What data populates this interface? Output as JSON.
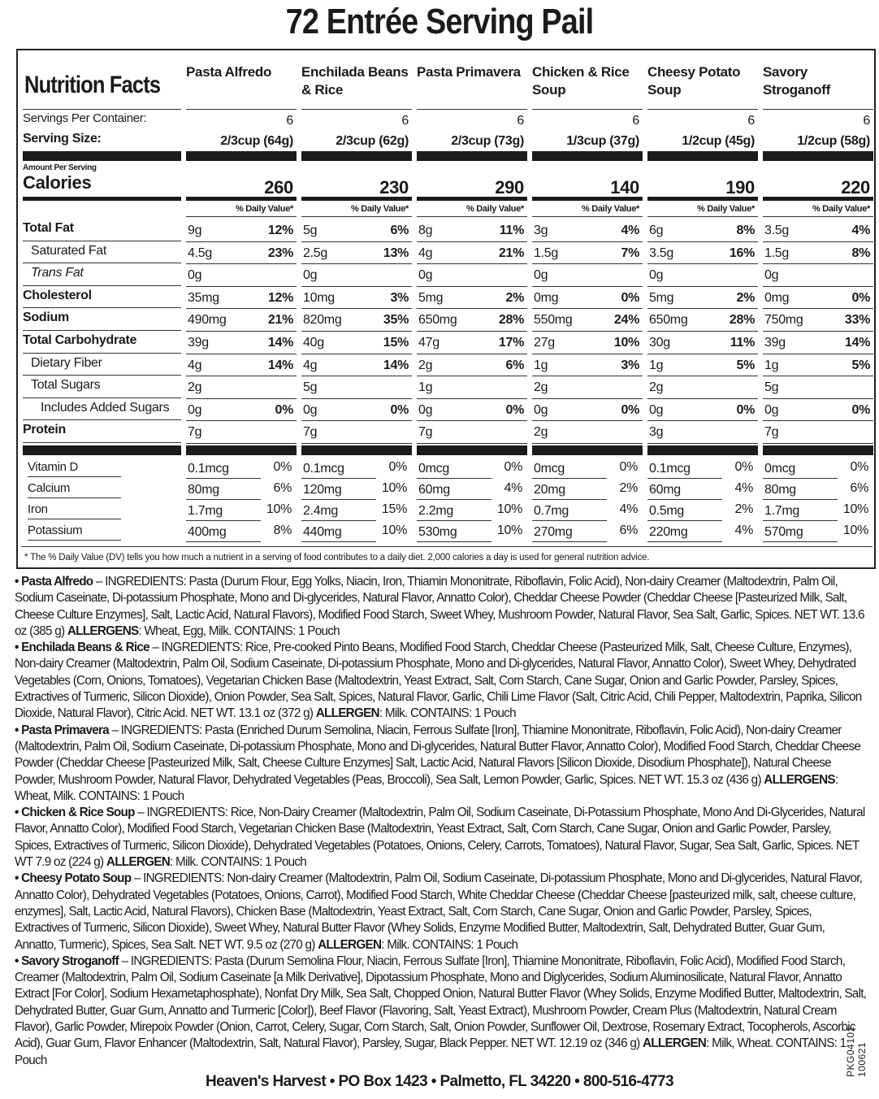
{
  "title": "72 Entrée Serving Pail",
  "panel_title": "Nutrition Facts",
  "products": [
    "Pasta Alfredo",
    "Enchilada Beans & Rice",
    "Pasta Primavera",
    "Chicken & Rice Soup",
    "Cheesy Potato Soup",
    "Savory Stroganoff"
  ],
  "servings_label": "Servings Per Container:",
  "servings": [
    "6",
    "6",
    "6",
    "6",
    "6",
    "6"
  ],
  "serving_size_label": "Serving Size:",
  "serving_sizes": [
    "2/3cup (64g)",
    "2/3cup (62g)",
    "2/3cup (73g)",
    "1/3cup (37g)",
    "1/2cup (45g)",
    "1/2cup (58g)"
  ],
  "amount_label": "Amount Per Serving",
  "calories_label": "Calories",
  "calories": [
    "260",
    "230",
    "290",
    "140",
    "190",
    "220"
  ],
  "dv_label": "% Daily Value*",
  "nutrients": [
    {
      "label": "Total Fat",
      "bold": true,
      "values": [
        [
          "9g",
          "12%"
        ],
        [
          "5g",
          "6%"
        ],
        [
          "8g",
          "11%"
        ],
        [
          "3g",
          "4%"
        ],
        [
          "6g",
          "8%"
        ],
        [
          "3.5g",
          "4%"
        ]
      ]
    },
    {
      "label": "Saturated Fat",
      "indent": 1,
      "values": [
        [
          "4.5g",
          "23%"
        ],
        [
          "2.5g",
          "13%"
        ],
        [
          "4g",
          "21%"
        ],
        [
          "1.5g",
          "7%"
        ],
        [
          "3.5g",
          "16%"
        ],
        [
          "1.5g",
          "8%"
        ]
      ]
    },
    {
      "label": "Trans Fat",
      "indent": 1,
      "italic": true,
      "values": [
        [
          "0g",
          ""
        ],
        [
          "0g",
          ""
        ],
        [
          "0g",
          ""
        ],
        [
          "0g",
          ""
        ],
        [
          "0g",
          ""
        ],
        [
          "0g",
          ""
        ]
      ]
    },
    {
      "label": "Cholesterol",
      "bold": true,
      "values": [
        [
          "35mg",
          "12%"
        ],
        [
          "10mg",
          "3%"
        ],
        [
          "5mg",
          "2%"
        ],
        [
          "0mg",
          "0%"
        ],
        [
          "5mg",
          "2%"
        ],
        [
          "0mg",
          "0%"
        ]
      ]
    },
    {
      "label": "Sodium",
      "bold": true,
      "values": [
        [
          "490mg",
          "21%"
        ],
        [
          "820mg",
          "35%"
        ],
        [
          "650mg",
          "28%"
        ],
        [
          "550mg",
          "24%"
        ],
        [
          "650mg",
          "28%"
        ],
        [
          "750mg",
          "33%"
        ]
      ]
    },
    {
      "label": "Total Carbohydrate",
      "bold": true,
      "values": [
        [
          "39g",
          "14%"
        ],
        [
          "40g",
          "15%"
        ],
        [
          "47g",
          "17%"
        ],
        [
          "27g",
          "10%"
        ],
        [
          "30g",
          "11%"
        ],
        [
          "39g",
          "14%"
        ]
      ]
    },
    {
      "label": "Dietary Fiber",
      "indent": 1,
      "values": [
        [
          "4g",
          "14%"
        ],
        [
          "4g",
          "14%"
        ],
        [
          "2g",
          "6%"
        ],
        [
          "1g",
          "3%"
        ],
        [
          "1g",
          "5%"
        ],
        [
          "1g",
          "5%"
        ]
      ]
    },
    {
      "label": "Total Sugars",
      "indent": 1,
      "values": [
        [
          "2g",
          ""
        ],
        [
          "5g",
          ""
        ],
        [
          "1g",
          ""
        ],
        [
          "2g",
          ""
        ],
        [
          "2g",
          ""
        ],
        [
          "5g",
          ""
        ]
      ]
    },
    {
      "label": "Includes Added Sugars",
      "indent": 2,
      "values": [
        [
          "0g",
          "0%"
        ],
        [
          "0g",
          "0%"
        ],
        [
          "0g",
          "0%"
        ],
        [
          "0g",
          "0%"
        ],
        [
          "0g",
          "0%"
        ],
        [
          "0g",
          "0%"
        ]
      ]
    },
    {
      "label": "Protein",
      "bold": true,
      "values": [
        [
          "7g",
          ""
        ],
        [
          "7g",
          ""
        ],
        [
          "7g",
          ""
        ],
        [
          "2g",
          ""
        ],
        [
          "3g",
          ""
        ],
        [
          "7g",
          ""
        ]
      ]
    }
  ],
  "vitamins": [
    {
      "label": "Vitamin D",
      "values": [
        [
          "0.1mcg",
          "0%"
        ],
        [
          "0.1mcg",
          "0%"
        ],
        [
          "0mcg",
          "0%"
        ],
        [
          "0mcg",
          "0%"
        ],
        [
          "0.1mcg",
          "0%"
        ],
        [
          "0mcg",
          "0%"
        ]
      ]
    },
    {
      "label": "Calcium",
      "values": [
        [
          "80mg",
          "6%"
        ],
        [
          "120mg",
          "10%"
        ],
        [
          "60mg",
          "4%"
        ],
        [
          "20mg",
          "2%"
        ],
        [
          "60mg",
          "4%"
        ],
        [
          "80mg",
          "6%"
        ]
      ]
    },
    {
      "label": "Iron",
      "values": [
        [
          "1.7mg",
          "10%"
        ],
        [
          "2.4mg",
          "15%"
        ],
        [
          "2.2mg",
          "10%"
        ],
        [
          "0.7mg",
          "4%"
        ],
        [
          "0.5mg",
          "2%"
        ],
        [
          "1.7mg",
          "10%"
        ]
      ]
    },
    {
      "label": "Potassium",
      "values": [
        [
          "400mg",
          "8%"
        ],
        [
          "440mg",
          "10%"
        ],
        [
          "530mg",
          "10%"
        ],
        [
          "270mg",
          "6%"
        ],
        [
          "220mg",
          "4%"
        ],
        [
          "570mg",
          "10%"
        ]
      ]
    }
  ],
  "footnote": "* The % Daily Value (DV) tells you how much a nutrient in a serving of food contributes to a daily diet. 2,000 calories a day is used for general nutrition advice.",
  "ingredients": [
    {
      "name": "• Pasta Alfredo",
      "text": " – INGREDIENTS: Pasta (Durum Flour, Egg Yolks, Niacin, Iron, Thiamin Mononitrate, Riboflavin, Folic Acid), Non-dairy Creamer (Maltodextrin, Palm Oil, Sodium Caseinate, Di-potassium Phosphate, Mono and Di-glycerides, Natural Flavor, Annatto Color), Cheddar Cheese Powder (Cheddar Cheese [Pasteurized Milk, Salt, Cheese Culture Enzymes], Salt, Lactic Acid, Natural Flavors), Modified Food Starch, Sweet Whey, Mushroom Powder, Natural Flavor, Sea Salt, Garlic, Spices.  NET WT. 13.6 oz (385 g) ",
      "allergen_label": "ALLERGENS",
      "allergen_text": ": Wheat, Egg, Milk. CONTAINS: 1 Pouch"
    },
    {
      "name": "• Enchilada Beans & Rice",
      "text": " – INGREDIENTS: Rice, Pre-cooked Pinto Beans, Modified Food Starch,  Cheddar Cheese (Pasteurized Milk, Salt, Cheese Culture, Enzymes), Non-dairy Creamer (Maltodextrin, Palm Oil, Sodium Caseinate, Di-potassium Phosphate, Mono and Di-glycerides, Natural Flavor, Annatto Color), Sweet Whey, Dehydrated Vegetables (Corn, Onions, Tomatoes), Vegetarian Chicken Base (Maltodextrin, Yeast Extract, Salt, Corn Starch, Cane Sugar, Onion and Garlic Powder, Parsley, Spices, Extractives of Turmeric, Silicon Dioxide), Onion Powder, Sea Salt, Spices, Natural Flavor, Garlic, Chili Lime Flavor (Salt, Citric Acid, Chili Pepper, Maltodextrin, Paprika, Silicon Dioxide, Natural Flavor), Citric Acid.  NET WT. 13.1 oz (372 g) ",
      "allergen_label": "ALLERGEN",
      "allergen_text": ": Milk. CONTAINS: 1 Pouch"
    },
    {
      "name": "• Pasta Primavera",
      "text": " – INGREDIENTS: Pasta (Enriched Durum Semolina, Niacin, Ferrous Sulfate [Iron], Thiamine Mononitrate, Riboflavin, Folic Acid), Non-dairy Creamer (Maltodextrin, Palm Oil, Sodium Caseinate, Di-potassium Phosphate, Mono and Di-glycerides, Natural Butter Flavor, Annatto Color), Modified Food Starch, Cheddar Cheese Powder (Cheddar Cheese [Pasteurized Milk, Salt, Cheese Culture Enzymes] Salt, Lactic Acid, Natural Flavors [Silicon Dioxide, Disodium Phosphate]), Natural Cheese Powder, Mushroom Powder, Natural Flavor, Dehydrated Vegetables (Peas, Broccoli), Sea Salt, Lemon Powder, Garlic, Spices. NET WT. 15.3 oz (436 g) ",
      "allergen_label": "ALLERGENS",
      "allergen_text": ": Wheat, Milk. CONTAINS: 1 Pouch"
    },
    {
      "name": "• Chicken & Rice Soup",
      "text": " – INGREDIENTS: Rice, Non-Dairy Creamer (Maltodextrin, Palm Oil, Sodium Caseinate, Di-Potassium Phosphate, Mono And Di-Glycerides, Natural Flavor, Annatto Color), Modified Food Starch, Vegetarian Chicken Base (Maltodextrin, Yeast Extract, Salt, Corn Starch, Cane Sugar, Onion and Garlic Powder, Parsley, Spices, Extractives of Turmeric, Silicon Dioxide), Dehydrated Vegetables (Potatoes, Onions, Celery, Carrots, Tomatoes), Natural Flavor, Sugar, Sea Salt, Garlic, Spices. NET WT 7.9 oz (224 g) ",
      "allergen_label": "ALLERGEN",
      "allergen_text": ": Milk. CONTAINS: 1 Pouch"
    },
    {
      "name": "• Cheesy Potato Soup",
      "text": " – INGREDIENTS: Non-dairy Creamer (Maltodextrin, Palm Oil, Sodium Caseinate, Di-potassium Phosphate, Mono and Di-glycerides, Natural Flavor, Annatto Color), Dehydrated Vegetables (Potatoes, Onions, Carrot), Modified Food Starch, White Cheddar Cheese (Cheddar Cheese [pasteurized milk, salt, cheese culture, enzymes], Salt, Lactic Acid, Natural Flavors), Chicken Base (Maltodextrin, Yeast Extract, Salt, Corn Starch, Cane Sugar, Onion and Garlic Powder, Parsley, Spices, Extractives of Turmeric, Silicon Dioxide), Sweet Whey, Natural Butter Flavor (Whey Solids, Enzyme Modified Butter, Maltodextrin, Salt, Dehydrated Butter, Guar Gum, Annatto, Turmeric), Spices, Sea Salt.  NET WT. 9.5 oz (270 g) ",
      "allergen_label": "ALLERGEN",
      "allergen_text": ": Milk. CONTAINS: 1 Pouch"
    },
    {
      "name": "• Savory Stroganoff",
      "text": " – INGREDIENTS: Pasta (Durum Semolina Flour, Niacin, Ferrous Sulfate [Iron], Thiamine Mononitrate, Riboflavin, Folic Acid), Modified Food Starch, Creamer (Maltodextrin, Palm Oil, Sodium Caseinate [a Milk Derivative], Dipotassium Phosphate, Mono and Diglycerides, Sodium Aluminosilicate, Natural Flavor, Annatto Extract [For Color], Sodium Hexametaphosphate), Nonfat Dry Milk, Sea Salt, Chopped Onion, Natural Butter Flavor (Whey Solids, Enzyme Modified Butter, Maltodextrin, Salt, Dehydrated Butter, Guar Gum, Annatto and Turmeric [Color]), Beef Flavor (Flavoring, Salt, Yeast Extract), Mushroom Powder, Cream Plus (Maltodextrin, Natural Cream Flavor), Garlic Powder, Mirepoix Powder (Onion, Carrot, Celery, Sugar, Corn Starch, Salt, Onion Powder, Sunflower Oil, Dextrose, Rosemary Extract, Tocopherols, Ascorbic Acid), Guar Gum, Flavor Enhancer (Maltodextrin, Salt, Natural Flavor), Parsley, Sugar, Black Pepper. NET WT. 12.19 oz (346 g) ",
      "allergen_label": "ALLERGEN",
      "allergen_text": ": Milk, Wheat. CONTAINS: 1 Pouch"
    }
  ],
  "address": "Heaven's Harvest • PO Box 1423 • Palmetto, FL 34220 • 800-516-4773",
  "package_code": "PKG04101 100621"
}
